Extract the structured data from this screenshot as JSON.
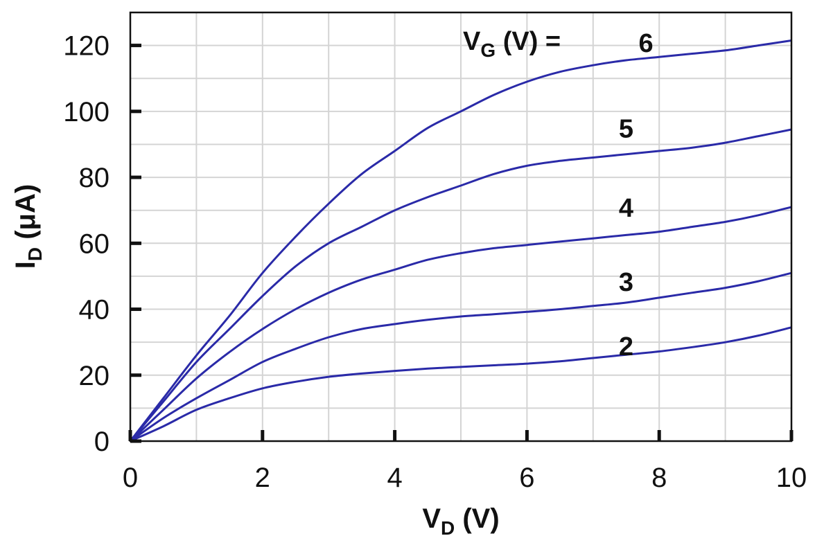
{
  "chart_data": {
    "type": "line",
    "xlabel": {
      "main": "V",
      "sub": "D",
      "unit": " (V)"
    },
    "ylabel": {
      "main": "I",
      "sub": "D",
      "unit": " (μA)"
    },
    "xlim": [
      0,
      10
    ],
    "ylim": [
      0,
      130
    ],
    "x_ticks": [
      0,
      2,
      4,
      6,
      8,
      10
    ],
    "y_ticks": [
      0,
      20,
      40,
      60,
      80,
      100,
      120
    ],
    "x_minor_step": 1,
    "y_minor_step": 10,
    "grid": true,
    "line_color": "#2a2aa8",
    "legend": {
      "main": "V",
      "sub": "G",
      "rest": " (V) ="
    },
    "series": [
      {
        "name": "6",
        "x": [
          0,
          0.5,
          1,
          1.5,
          2,
          2.5,
          3,
          3.5,
          4,
          4.5,
          5,
          5.5,
          6,
          6.5,
          7,
          7.5,
          8,
          8.5,
          9,
          9.5,
          10
        ],
        "values": [
          0,
          13,
          26,
          38,
          51,
          62,
          72,
          81,
          88,
          95,
          100,
          105,
          109,
          112,
          114,
          115.5,
          116.5,
          117.5,
          118.5,
          120,
          121.5
        ]
      },
      {
        "name": "5",
        "x": [
          0,
          0.5,
          1,
          1.5,
          2,
          2.5,
          3,
          3.5,
          4,
          4.5,
          5,
          5.5,
          6,
          6.5,
          7,
          7.5,
          8,
          8.5,
          9,
          9.5,
          10
        ],
        "values": [
          0,
          12,
          24,
          34,
          44,
          53,
          60,
          65,
          70,
          74,
          77.5,
          81,
          83.5,
          85,
          86,
          87,
          88,
          89,
          90.5,
          92.5,
          94.5
        ]
      },
      {
        "name": "4",
        "x": [
          0,
          0.5,
          1,
          1.5,
          2,
          2.5,
          3,
          3.5,
          4,
          4.5,
          5,
          5.5,
          6,
          6.5,
          7,
          7.5,
          8,
          8.5,
          9,
          9.5,
          10
        ],
        "values": [
          0,
          9.5,
          19,
          27,
          34,
          40,
          45,
          49,
          52,
          55,
          57,
          58.5,
          59.5,
          60.5,
          61.5,
          62.5,
          63.5,
          65,
          66.5,
          68.5,
          71
        ]
      },
      {
        "name": "3",
        "x": [
          0,
          0.5,
          1,
          1.5,
          2,
          2.5,
          3,
          3.5,
          4,
          4.5,
          5,
          5.5,
          6,
          6.5,
          7,
          7.5,
          8,
          8.5,
          9,
          9.5,
          10
        ],
        "values": [
          0,
          7,
          13,
          18.5,
          24,
          28,
          31.5,
          34,
          35.5,
          36.8,
          37.8,
          38.5,
          39.2,
          40,
          41,
          42,
          43.5,
          45,
          46.5,
          48.5,
          51
        ]
      },
      {
        "name": "2",
        "x": [
          0,
          0.5,
          1,
          1.5,
          2,
          2.5,
          3,
          3.5,
          4,
          4.5,
          5,
          5.5,
          6,
          6.5,
          7,
          7.5,
          8,
          8.5,
          9,
          9.5,
          10
        ],
        "values": [
          0,
          4.5,
          9.5,
          13,
          16,
          18,
          19.5,
          20.5,
          21.3,
          22,
          22.5,
          23,
          23.5,
          24.2,
          25.2,
          26.2,
          27.2,
          28.5,
          30,
          32,
          34.5
        ]
      }
    ],
    "curve_labels": [
      {
        "text": "6",
        "x": 7.8,
        "y": 121
      },
      {
        "text": "5",
        "x": 7.5,
        "y": 95
      },
      {
        "text": "4",
        "x": 7.5,
        "y": 71
      },
      {
        "text": "3",
        "x": 7.5,
        "y": 48.5
      },
      {
        "text": "2",
        "x": 7.5,
        "y": 29
      }
    ]
  }
}
